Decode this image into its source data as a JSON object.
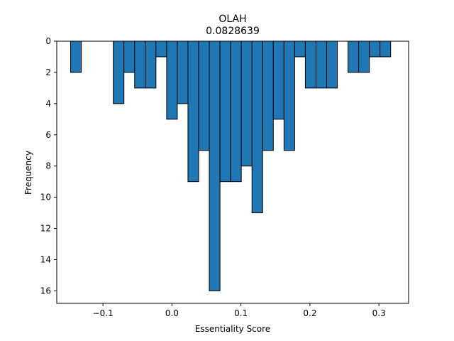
{
  "chart_data": {
    "type": "bar",
    "title": "OLAH",
    "subtitle": "0.0828639",
    "xlabel": "Essentiality Score",
    "ylabel": "Frequency",
    "xlim": [
      -0.167,
      0.343
    ],
    "ylim": [
      0,
      16.8
    ],
    "y_inverted": true,
    "grid": false,
    "bar_color": "#1f77b4",
    "edge_color": "#000000",
    "x_ticks": [
      {
        "value": -0.1,
        "label": "−0.1"
      },
      {
        "value": 0.0,
        "label": "0.0"
      },
      {
        "value": 0.1,
        "label": "0.1"
      },
      {
        "value": 0.2,
        "label": "0.2"
      },
      {
        "value": 0.3,
        "label": "0.3"
      }
    ],
    "y_ticks": [
      {
        "value": 0,
        "label": "0"
      },
      {
        "value": 2,
        "label": "2"
      },
      {
        "value": 4,
        "label": "4"
      },
      {
        "value": 6,
        "label": "6"
      },
      {
        "value": 8,
        "label": "8"
      },
      {
        "value": 10,
        "label": "10"
      },
      {
        "value": 12,
        "label": "12"
      },
      {
        "value": 14,
        "label": "14"
      },
      {
        "value": 16,
        "label": "16"
      }
    ],
    "bins": [
      {
        "x0": -0.1469,
        "x1": -0.1314,
        "count": 2
      },
      {
        "x0": -0.1314,
        "x1": -0.116,
        "count": 0
      },
      {
        "x0": -0.116,
        "x1": -0.1005,
        "count": 0
      },
      {
        "x0": -0.1005,
        "x1": -0.0851,
        "count": 0
      },
      {
        "x0": -0.0851,
        "x1": -0.0696,
        "count": 4
      },
      {
        "x0": -0.0696,
        "x1": -0.0541,
        "count": 2
      },
      {
        "x0": -0.0541,
        "x1": -0.0387,
        "count": 3
      },
      {
        "x0": -0.0387,
        "x1": -0.0232,
        "count": 3
      },
      {
        "x0": -0.0232,
        "x1": -0.0077,
        "count": 1
      },
      {
        "x0": -0.0077,
        "x1": 0.0077,
        "count": 5
      },
      {
        "x0": 0.0077,
        "x1": 0.0232,
        "count": 4
      },
      {
        "x0": 0.0232,
        "x1": 0.0387,
        "count": 9
      },
      {
        "x0": 0.0387,
        "x1": 0.0541,
        "count": 7
      },
      {
        "x0": 0.0541,
        "x1": 0.0696,
        "count": 16
      },
      {
        "x0": 0.0696,
        "x1": 0.0851,
        "count": 9
      },
      {
        "x0": 0.0851,
        "x1": 0.1005,
        "count": 9
      },
      {
        "x0": 0.1005,
        "x1": 0.116,
        "count": 8
      },
      {
        "x0": 0.116,
        "x1": 0.1314,
        "count": 11
      },
      {
        "x0": 0.1314,
        "x1": 0.1469,
        "count": 7
      },
      {
        "x0": 0.1469,
        "x1": 0.1624,
        "count": 5
      },
      {
        "x0": 0.1624,
        "x1": 0.1778,
        "count": 7
      },
      {
        "x0": 0.1778,
        "x1": 0.1933,
        "count": 1
      },
      {
        "x0": 0.1933,
        "x1": 0.2088,
        "count": 3
      },
      {
        "x0": 0.2088,
        "x1": 0.2242,
        "count": 3
      },
      {
        "x0": 0.2242,
        "x1": 0.2397,
        "count": 3
      },
      {
        "x0": 0.2397,
        "x1": 0.2552,
        "count": 0
      },
      {
        "x0": 0.2552,
        "x1": 0.2706,
        "count": 2
      },
      {
        "x0": 0.2706,
        "x1": 0.2861,
        "count": 2
      },
      {
        "x0": 0.2861,
        "x1": 0.3015,
        "count": 1
      },
      {
        "x0": 0.3015,
        "x1": 0.317,
        "count": 1
      }
    ]
  }
}
